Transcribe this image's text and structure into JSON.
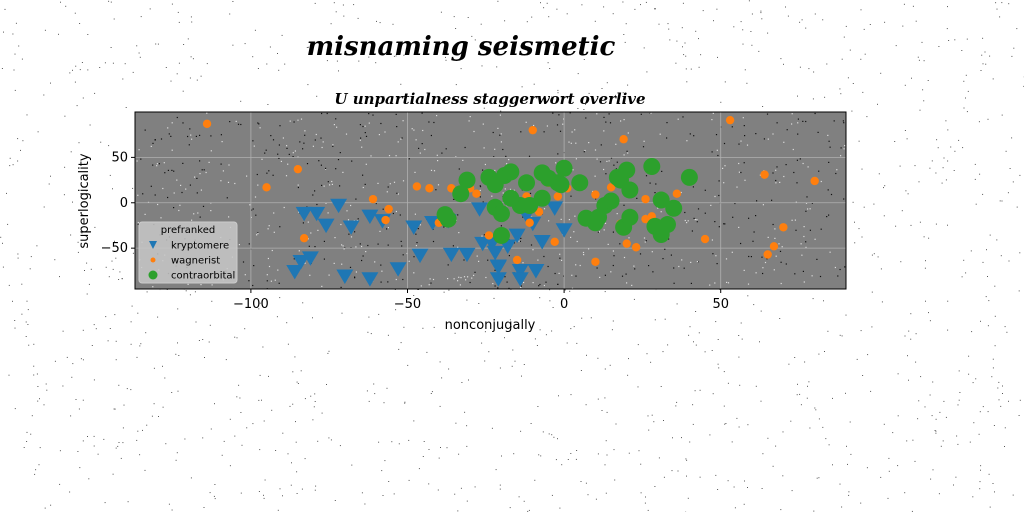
{
  "figure": {
    "suptitle": "misnaming seismetic",
    "background": "#ffffff",
    "axes_facecolor": "#808080"
  },
  "chart_data": {
    "type": "scatter",
    "title": "U unpartialness staggerwort overlive",
    "xlabel": "nonconjugally",
    "ylabel": "superlogicality",
    "xlim": [
      -137,
      90
    ],
    "ylim": [
      -95,
      100
    ],
    "xticks": [
      -100,
      -50,
      0,
      50
    ],
    "yticks": [
      -50,
      0,
      50
    ],
    "xtick_labels": [
      "−100",
      "−50",
      "0",
      "50"
    ],
    "ytick_labels": [
      "−50",
      "0",
      "50"
    ],
    "grid": true,
    "legend": {
      "title": "prefranked",
      "placement": "lower-left"
    },
    "series": [
      {
        "name": "kryptomere",
        "marker": "triangle-down",
        "color": "#1f77b4",
        "points": [
          [
            -83,
            -12
          ],
          [
            -79,
            -12
          ],
          [
            -72,
            -3
          ],
          [
            -76,
            -25
          ],
          [
            -68,
            -27
          ],
          [
            -62,
            -15
          ],
          [
            -58,
            -20
          ],
          [
            -84,
            -65
          ],
          [
            -86,
            -76
          ],
          [
            -81,
            -61
          ],
          [
            -70,
            -81
          ],
          [
            -62,
            -84
          ],
          [
            -53,
            -73
          ],
          [
            -48,
            -27
          ],
          [
            -46,
            -58
          ],
          [
            -42,
            -22
          ],
          [
            -37,
            -20
          ],
          [
            -36,
            -57
          ],
          [
            -31,
            -57
          ],
          [
            -27,
            -7
          ],
          [
            -26,
            -45
          ],
          [
            -23,
            -45
          ],
          [
            -22,
            -55
          ],
          [
            -21,
            -84
          ],
          [
            -21,
            -71
          ],
          [
            -18,
            -48
          ],
          [
            -15,
            -36
          ],
          [
            -14,
            -75
          ],
          [
            -14,
            -84
          ],
          [
            -12,
            -14
          ],
          [
            -10,
            -23
          ],
          [
            -9,
            -75
          ],
          [
            -7,
            -43
          ],
          [
            -3,
            -6
          ],
          [
            0,
            -30
          ],
          [
            -21,
            -70
          ]
        ]
      },
      {
        "name": "wagnerist",
        "marker": "circle-small",
        "color": "#ff7f0e",
        "points": [
          [
            -114,
            87
          ],
          [
            -95,
            17
          ],
          [
            -85,
            37
          ],
          [
            -83,
            -39
          ],
          [
            -61,
            4
          ],
          [
            -57,
            -19
          ],
          [
            -56,
            -7
          ],
          [
            -47,
            18
          ],
          [
            -43,
            16
          ],
          [
            -36,
            16
          ],
          [
            -34,
            12
          ],
          [
            -28,
            10
          ],
          [
            -24,
            -36
          ],
          [
            -15,
            -63
          ],
          [
            -12,
            7
          ],
          [
            -11,
            -22
          ],
          [
            -10,
            80
          ],
          [
            -8,
            -10
          ],
          [
            -5,
            22
          ],
          [
            -3,
            -43
          ],
          [
            -2,
            7
          ],
          [
            1,
            16
          ],
          [
            4,
            20
          ],
          [
            10,
            9
          ],
          [
            10,
            -65
          ],
          [
            15,
            17
          ],
          [
            18,
            -23
          ],
          [
            19,
            70
          ],
          [
            20,
            -45
          ],
          [
            23,
            -49
          ],
          [
            26,
            -18
          ],
          [
            26,
            4
          ],
          [
            28,
            -15
          ],
          [
            32,
            6
          ],
          [
            36,
            10
          ],
          [
            45,
            -40
          ],
          [
            53,
            91
          ],
          [
            64,
            31
          ],
          [
            65,
            -57
          ],
          [
            67,
            -48
          ],
          [
            70,
            -27
          ],
          [
            80,
            24
          ],
          [
            -30,
            16
          ],
          [
            -40,
            -22
          ]
        ]
      },
      {
        "name": "contraorbital",
        "marker": "circle-large",
        "color": "#2ca02c",
        "points": [
          [
            -38,
            -13
          ],
          [
            -33,
            10
          ],
          [
            -31,
            25
          ],
          [
            -24,
            28
          ],
          [
            -22,
            20
          ],
          [
            -22,
            -5
          ],
          [
            -20,
            -12
          ],
          [
            -19,
            30
          ],
          [
            -17,
            34
          ],
          [
            -12,
            22
          ],
          [
            -11,
            -3
          ],
          [
            -7,
            33
          ],
          [
            -5,
            27
          ],
          [
            -2,
            22
          ],
          [
            -1,
            20
          ],
          [
            0,
            38
          ],
          [
            -20,
            -36
          ],
          [
            5,
            22
          ],
          [
            7,
            -17
          ],
          [
            10,
            -22
          ],
          [
            11,
            -16
          ],
          [
            13,
            -3
          ],
          [
            15,
            2
          ],
          [
            17,
            28
          ],
          [
            18,
            25
          ],
          [
            19,
            -27
          ],
          [
            20,
            36
          ],
          [
            21,
            -16
          ],
          [
            21,
            14
          ],
          [
            28,
            40
          ],
          [
            29,
            -26
          ],
          [
            31,
            -35
          ],
          [
            31,
            3
          ],
          [
            33,
            -24
          ],
          [
            35,
            -6
          ],
          [
            40,
            28
          ],
          [
            -14,
            -3
          ],
          [
            -7,
            5
          ],
          [
            -17,
            5
          ],
          [
            -37,
            -18
          ]
        ]
      }
    ]
  }
}
